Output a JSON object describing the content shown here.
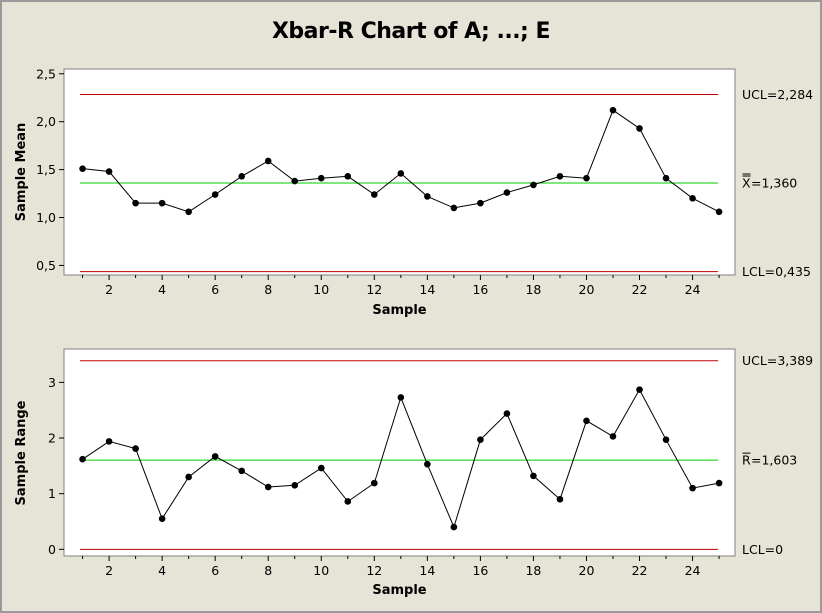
{
  "title": "Xbar-R Chart of A; ...; E",
  "colors": {
    "background": "#e5e4d6",
    "plot_area": "#ffffff",
    "limit_line": "#c00000",
    "center_line": "#00cc00",
    "series": "#000000"
  },
  "chart_data": [
    {
      "type": "line",
      "xlabel": "Sample",
      "ylabel": "Sample Mean",
      "x": [
        1,
        2,
        3,
        4,
        5,
        6,
        7,
        8,
        9,
        10,
        11,
        12,
        13,
        14,
        15,
        16,
        17,
        18,
        19,
        20,
        21,
        22,
        23,
        24,
        25
      ],
      "values": [
        1.51,
        1.48,
        1.15,
        1.15,
        1.06,
        1.24,
        1.43,
        1.59,
        1.38,
        1.41,
        1.43,
        1.24,
        1.46,
        1.22,
        1.1,
        1.15,
        1.26,
        1.34,
        1.43,
        1.41,
        2.12,
        1.93,
        1.41,
        1.2,
        1.06
      ],
      "xticks": [
        2,
        4,
        6,
        8,
        10,
        12,
        14,
        16,
        18,
        20,
        22,
        24
      ],
      "xtick_labels": [
        "2",
        "4",
        "6",
        "8",
        "10",
        "12",
        "14",
        "16",
        "18",
        "20",
        "22",
        "24"
      ],
      "yticks": [
        0.5,
        1.0,
        1.5,
        2.0,
        2.5
      ],
      "ytick_labels": [
        "0,5",
        "1,0",
        "1,5",
        "2,0",
        "2,5"
      ],
      "ylim": [
        0.4,
        2.55
      ],
      "xlim": [
        0.3,
        25.6
      ],
      "ucl": 2.284,
      "ucl_label": "UCL=2,284",
      "center": 1.36,
      "center_label": "=1,360",
      "center_symbol": "X",
      "lcl": 0.435,
      "lcl_label": "LCL=0,435"
    },
    {
      "type": "line",
      "xlabel": "Sample",
      "ylabel": "Sample Range",
      "x": [
        1,
        2,
        3,
        4,
        5,
        6,
        7,
        8,
        9,
        10,
        11,
        12,
        13,
        14,
        15,
        16,
        17,
        18,
        19,
        20,
        21,
        22,
        23,
        24,
        25
      ],
      "values": [
        1.62,
        1.94,
        1.81,
        0.55,
        1.3,
        1.67,
        1.41,
        1.12,
        1.15,
        1.46,
        0.86,
        1.19,
        2.73,
        1.53,
        0.4,
        1.97,
        2.44,
        1.32,
        0.9,
        2.31,
        2.03,
        2.87,
        1.97,
        1.1,
        1.19
      ],
      "xticks": [
        2,
        4,
        6,
        8,
        10,
        12,
        14,
        16,
        18,
        20,
        22,
        24
      ],
      "xtick_labels": [
        "2",
        "4",
        "6",
        "8",
        "10",
        "12",
        "14",
        "16",
        "18",
        "20",
        "22",
        "24"
      ],
      "yticks": [
        0,
        1,
        2,
        3
      ],
      "ytick_labels": [
        "0",
        "1",
        "2",
        "3"
      ],
      "ylim": [
        -0.12,
        3.6
      ],
      "xlim": [
        0.3,
        25.6
      ],
      "ucl": 3.389,
      "ucl_label": "UCL=3,389",
      "center": 1.603,
      "center_label": "=1,603",
      "center_symbol": "R",
      "lcl": 0,
      "lcl_label": "LCL=0"
    }
  ]
}
